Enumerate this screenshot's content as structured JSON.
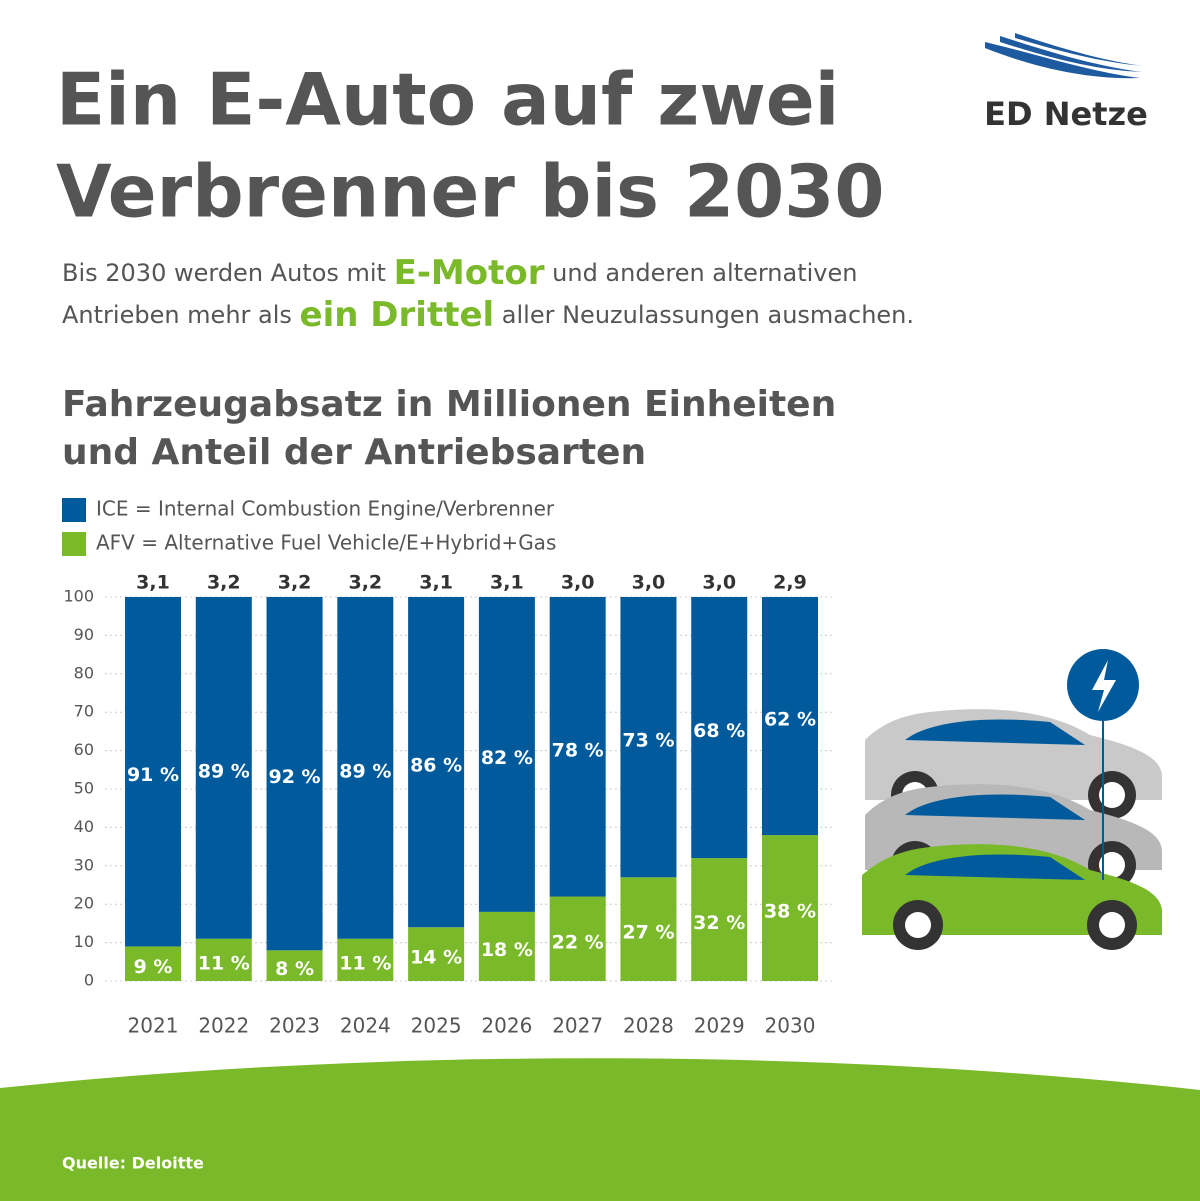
{
  "header": {
    "title_lines": [
      "Ein E-Auto auf zwei",
      "Verbrenner bis 2030"
    ],
    "subtitle_lines": [
      [
        {
          "text": "Bis 2030 werden Autos mit ",
          "highlight": false
        },
        {
          "text": "E-Motor",
          "highlight": true
        },
        {
          "text": " und anderen alternativen",
          "highlight": false
        }
      ],
      [
        {
          "text": "Antrieben mehr als ",
          "highlight": false
        },
        {
          "text": "ein Drittel",
          "highlight": true
        },
        {
          "text": " aller Neuzulassungen ausmachen.",
          "highlight": false
        }
      ]
    ]
  },
  "logo": "ED Netze",
  "source": "Quelle: Deloitte",
  "chart_data": {
    "type": "bar",
    "stacked": true,
    "title_lines": [
      "Fahrzeugabsatz in Millionen Einheiten",
      "und Anteil der Antriebsarten"
    ],
    "categories": [
      "2021",
      "2022",
      "2023",
      "2024",
      "2025",
      "2026",
      "2027",
      "2028",
      "2029",
      "2030"
    ],
    "series": [
      {
        "name": "ICE = Internal Combustion Engine/Verbrenner",
        "color": "#005a9b",
        "values": [
          91,
          89,
          92,
          89,
          86,
          82,
          78,
          73,
          68,
          62
        ],
        "value_labels": [
          "91 %",
          "89 %",
          "92 %",
          "89 %",
          "86 %",
          "82 %",
          "78 %",
          "73 %",
          "68 %",
          "62 %"
        ]
      },
      {
        "name": "AFV = Alternative Fuel Vehicle/E+Hybrid+Gas",
        "color": "#7ab929",
        "values": [
          9,
          11,
          8,
          11,
          14,
          18,
          22,
          27,
          32,
          38
        ],
        "value_labels": [
          "9 %",
          "11 %",
          "8 %",
          "11 %",
          "14 %",
          "18 %",
          "22 %",
          "27 %",
          "32 %",
          "38 %"
        ]
      }
    ],
    "totals": {
      "values": [
        3.1,
        3.2,
        3.2,
        3.2,
        3.1,
        3.1,
        3.0,
        3.0,
        3.0,
        2.9
      ],
      "value_labels": [
        "3,1",
        "3,2",
        "3,2",
        "3,2",
        "3,1",
        "3,1",
        "3,0",
        "3,0",
        "3,0",
        "2,9"
      ]
    },
    "ylim": [
      0,
      100
    ],
    "yticks": [
      0,
      10,
      20,
      30,
      40,
      50,
      60,
      70,
      80,
      90,
      100
    ],
    "grid": true
  }
}
